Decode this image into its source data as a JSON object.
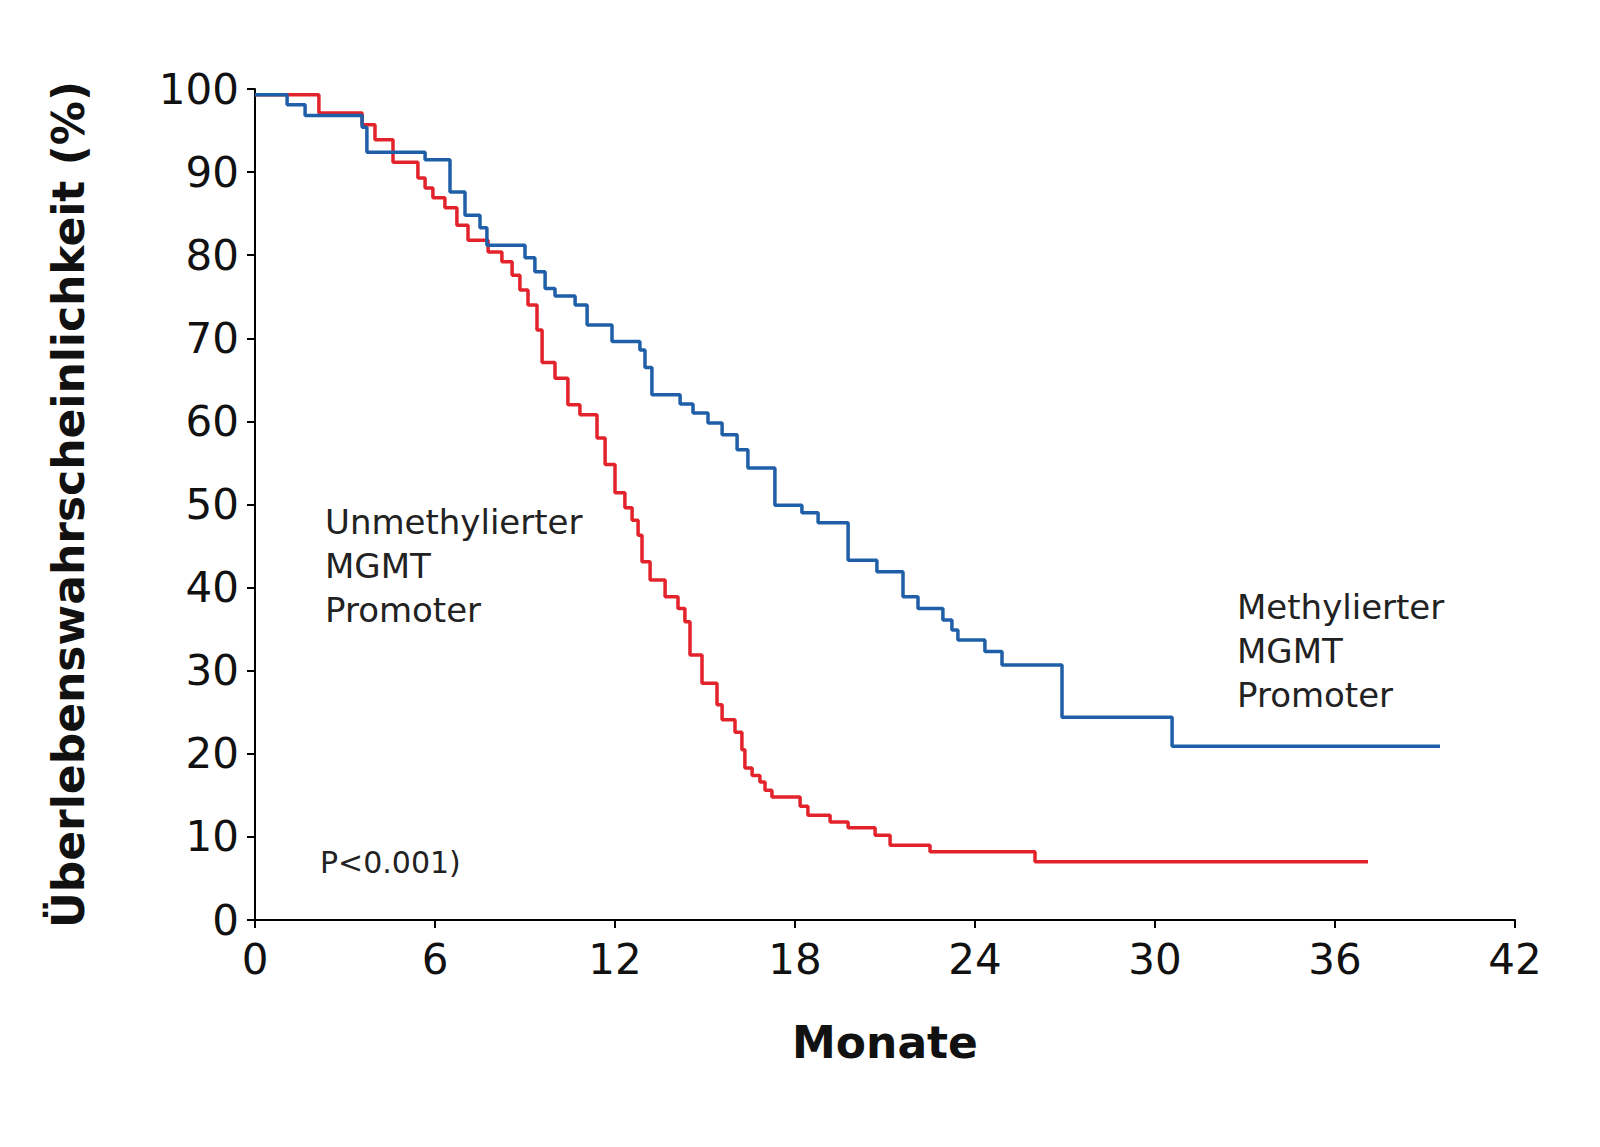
{
  "chart_data": {
    "type": "line",
    "x_label": "Monate",
    "y_label": "Überlebenswahrscheinlichkeit (%)",
    "annotations": [
      "P<0.001)"
    ],
    "xlim": [
      0,
      42
    ],
    "xticks": [
      0,
      6,
      12,
      18,
      24,
      30,
      36,
      42
    ],
    "ylim": [
      0,
      100
    ],
    "yticks": [
      0,
      10,
      20,
      30,
      40,
      50,
      60,
      70,
      80,
      90,
      100
    ],
    "grid": false,
    "line_style": "step",
    "series": [
      {
        "name": "Unmethylierter\nMGMT\nPromoter",
        "color": "#e3232c",
        "x": [
          0,
          2.13,
          3.57,
          4.0,
          4.6,
          5.43,
          5.67,
          5.93,
          6.33,
          6.73,
          7.1,
          7.77,
          8.23,
          8.57,
          8.83,
          9.1,
          9.4,
          9.57,
          10.0,
          10.43,
          10.83,
          11.4,
          11.67,
          12.0,
          12.33,
          12.57,
          12.77,
          12.9,
          13.17,
          13.67,
          14.1,
          14.33,
          14.5,
          14.9,
          15.4,
          15.57,
          16.0,
          16.23,
          16.33,
          16.57,
          16.83,
          17.0,
          17.23,
          18.17,
          18.43,
          19.17,
          19.77,
          20.67,
          21.17,
          22.5,
          26.0,
          37.1
        ],
        "values": [
          99.3,
          97.1,
          95.7,
          93.9,
          91.2,
          89.3,
          88.1,
          86.9,
          85.7,
          83.6,
          81.8,
          80.4,
          79.2,
          77.6,
          75.8,
          74.0,
          71.0,
          67.1,
          65.2,
          62.0,
          60.8,
          58.0,
          54.8,
          51.4,
          49.6,
          48.1,
          46.3,
          43.1,
          40.9,
          38.9,
          37.5,
          35.9,
          31.9,
          28.5,
          25.9,
          24.1,
          22.6,
          20.5,
          18.3,
          17.4,
          16.6,
          15.6,
          14.8,
          13.7,
          12.6,
          11.8,
          11.1,
          10.2,
          9.0,
          8.2,
          7.0,
          7.0
        ]
      },
      {
        "name": "Methylierter\nMGMT\nPromoter",
        "color": "#1f5fa8",
        "x": [
          0,
          1.07,
          1.67,
          3.57,
          3.73,
          5.67,
          6.5,
          7.0,
          7.5,
          7.73,
          9.0,
          9.33,
          9.67,
          10.0,
          10.67,
          11.07,
          11.9,
          12.83,
          13.0,
          13.23,
          14.17,
          14.6,
          15.1,
          15.57,
          16.07,
          16.43,
          17.33,
          18.23,
          18.77,
          19.77,
          20.73,
          21.6,
          22.1,
          22.93,
          23.23,
          23.43,
          24.33,
          24.9,
          26.9,
          30.57,
          39.5
        ],
        "values": [
          99.3,
          98.1,
          96.8,
          95.4,
          92.4,
          91.5,
          87.6,
          84.8,
          83.3,
          81.2,
          79.7,
          78.0,
          76.0,
          75.1,
          74.0,
          71.6,
          69.6,
          68.6,
          66.5,
          63.2,
          62.1,
          61.0,
          59.8,
          58.4,
          56.6,
          54.4,
          49.9,
          49.0,
          47.8,
          43.3,
          41.9,
          38.9,
          37.5,
          36.1,
          34.9,
          33.7,
          32.3,
          30.7,
          24.4,
          20.9,
          20.9
        ]
      }
    ]
  }
}
